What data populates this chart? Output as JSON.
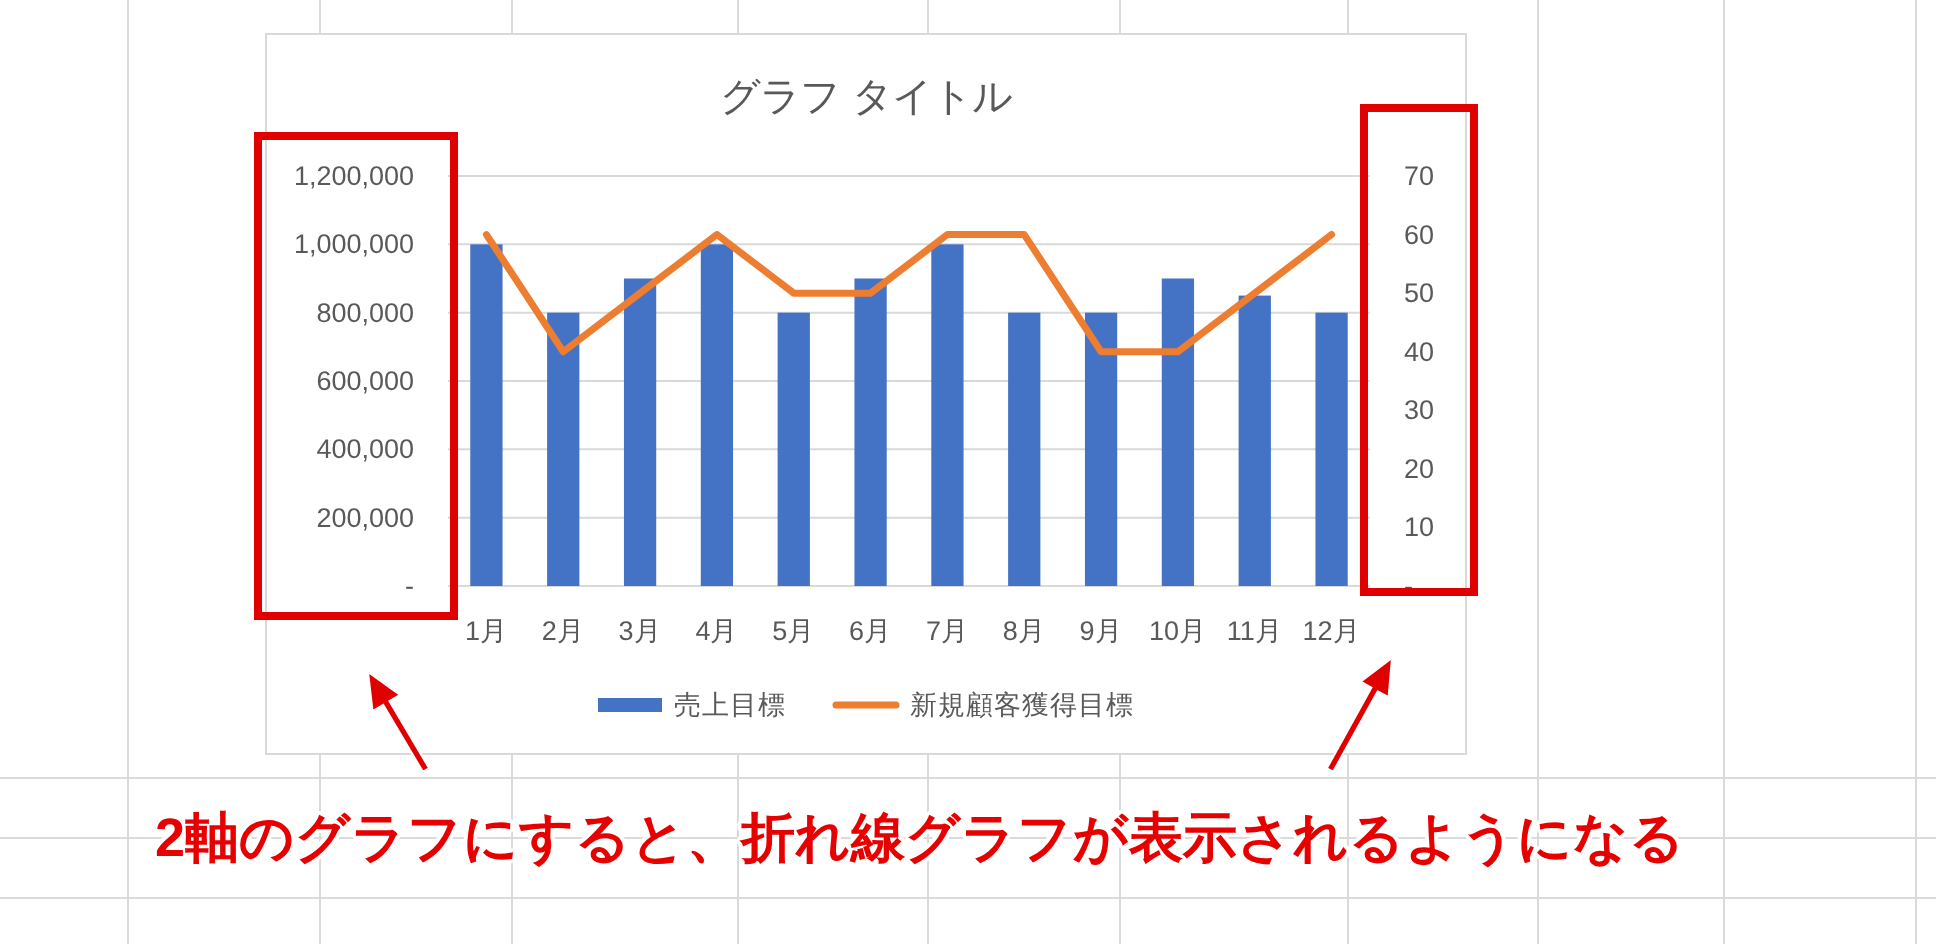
{
  "chart_data": {
    "type": "bar",
    "title": "グラフ タイトル",
    "categories": [
      "1月",
      "2月",
      "3月",
      "4月",
      "5月",
      "6月",
      "7月",
      "8月",
      "9月",
      "10月",
      "11月",
      "12月"
    ],
    "series": [
      {
        "name": "売上目標",
        "color": "#4472c4",
        "values": [
          1000000,
          800000,
          900000,
          1000000,
          800000,
          900000,
          1000000,
          800000,
          800000,
          900000,
          850000,
          800000
        ]
      },
      {
        "name": "新規顧客獲得目標",
        "type": "line",
        "color": "#ed7d31",
        "axis": "y2",
        "values": [
          60,
          40,
          50,
          60,
          50,
          50,
          60,
          60,
          40,
          40,
          50,
          60
        ]
      }
    ],
    "ylim": [
      0,
      1200000
    ],
    "yticks": [
      {
        "value": 0,
        "label": "-"
      },
      {
        "value": 200000,
        "label": "200,000"
      },
      {
        "value": 400000,
        "label": "400,000"
      },
      {
        "value": 600000,
        "label": "600,000"
      },
      {
        "value": 800000,
        "label": "800,000"
      },
      {
        "value": 1000000,
        "label": "1,000,000"
      },
      {
        "value": 1200000,
        "label": "1,200,000"
      }
    ],
    "y2lim": [
      0,
      70
    ],
    "y2ticks": [
      {
        "value": 0,
        "label": "-"
      },
      10,
      20,
      30,
      40,
      50,
      60,
      70
    ],
    "grid": "y",
    "legend": "bottom",
    "annotations": [
      "2軸のグラフにすると、折れ線グラフが表示されるようになる"
    ]
  }
}
